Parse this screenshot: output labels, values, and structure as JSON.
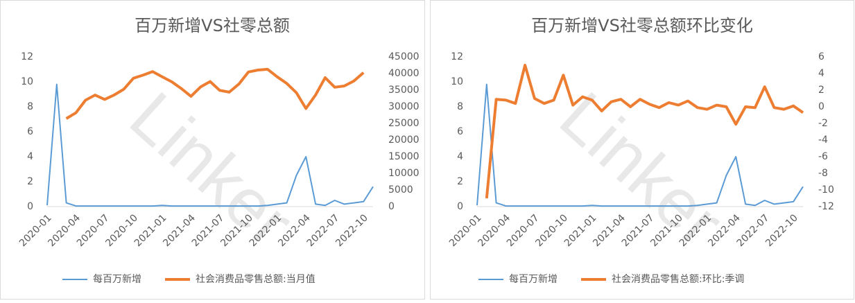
{
  "chart_data": [
    {
      "type": "line",
      "title": "百万新增VS社零总额",
      "watermark": "Linker",
      "categories": [
        "2020-01",
        null,
        null,
        "2020-04",
        null,
        null,
        "2020-07",
        null,
        null,
        "2020-10",
        null,
        null,
        "2021-01",
        null,
        null,
        "2021-04",
        null,
        null,
        "2021-07",
        null,
        null,
        "2021-10",
        null,
        null,
        "2022-01",
        null,
        null,
        "2022-04",
        null,
        null,
        "2022-07",
        null,
        null,
        "2022-10",
        null
      ],
      "series": [
        {
          "name": "每百万新增",
          "color": "#5b9bd5",
          "axis": "y",
          "values": [
            0.1,
            9.8,
            0.3,
            0.05,
            0.05,
            0.05,
            0.05,
            0.05,
            0.05,
            0.05,
            0.05,
            0.05,
            0.1,
            0.05,
            0.05,
            0.05,
            0.05,
            0.05,
            0.05,
            0.05,
            0.05,
            0.05,
            0.05,
            0.1,
            0.2,
            0.3,
            2.5,
            4.0,
            0.2,
            0.1,
            0.5,
            0.2,
            0.3,
            0.4,
            1.6
          ]
        },
        {
          "name": "社会消费品零售总额:当月值",
          "color": "#ed7d31",
          "axis": "y2",
          "values": [
            null,
            null,
            26450,
            28180,
            31970,
            33530,
            32200,
            33570,
            35300,
            38580,
            39510,
            40570,
            39000,
            37500,
            35480,
            33150,
            35950,
            37590,
            34930,
            34400,
            36830,
            40450,
            41040,
            41270,
            39000,
            37000,
            34230,
            29480,
            33550,
            38740,
            35870,
            36260,
            37750,
            40270,
            null
          ]
        }
      ],
      "ylim": [
        0,
        12
      ],
      "yticks": [
        0,
        2,
        4,
        6,
        8,
        10,
        12
      ],
      "y2lim": [
        0,
        45000
      ],
      "y2ticks": [
        0,
        5000,
        10000,
        15000,
        20000,
        25000,
        30000,
        35000,
        40000,
        45000
      ]
    },
    {
      "type": "line",
      "title": "百万新增VS社零总额环比变化",
      "watermark": "Linker",
      "categories": [
        "2020-01",
        null,
        null,
        "2020-04",
        null,
        null,
        "2020-07",
        null,
        null,
        "2020-10",
        null,
        null,
        "2021-01",
        null,
        null,
        "2021-04",
        null,
        null,
        "2021-07",
        null,
        null,
        "2021-10",
        null,
        null,
        "2022-01",
        null,
        null,
        "2022-04",
        null,
        null,
        "2022-07",
        null,
        null,
        "2022-10",
        null
      ],
      "series": [
        {
          "name": "每百万新增",
          "color": "#5b9bd5",
          "axis": "y",
          "values": [
            0.1,
            9.8,
            0.3,
            0.05,
            0.05,
            0.05,
            0.05,
            0.05,
            0.05,
            0.05,
            0.05,
            0.05,
            0.1,
            0.05,
            0.05,
            0.05,
            0.05,
            0.05,
            0.05,
            0.05,
            0.05,
            0.05,
            0.05,
            0.1,
            0.2,
            0.3,
            2.5,
            4.0,
            0.2,
            0.1,
            0.5,
            0.2,
            0.3,
            0.4,
            1.6
          ]
        },
        {
          "name": "社会消费品零售总额:环比:季调",
          "color": "#ed7d31",
          "axis": "y2",
          "values": [
            null,
            -11,
            0.9,
            0.8,
            0.4,
            5.0,
            1.0,
            0.4,
            0.8,
            3.8,
            0.2,
            1.2,
            0.8,
            -0.5,
            0.6,
            0.9,
            0.0,
            0.9,
            0.3,
            -0.1,
            0.5,
            0.2,
            0.7,
            -0.1,
            -0.3,
            0.2,
            0.0,
            -2.1,
            0.0,
            -0.1,
            2.4,
            -0.1,
            -0.3,
            0.1,
            -0.7
          ]
        }
      ],
      "ylim": [
        0,
        12
      ],
      "yticks": [
        0,
        2,
        4,
        6,
        8,
        10,
        12
      ],
      "y2lim": [
        -12,
        6
      ],
      "y2ticks": [
        -12,
        -10,
        -8,
        -6,
        -4,
        -2,
        0,
        2,
        4,
        6
      ]
    }
  ]
}
